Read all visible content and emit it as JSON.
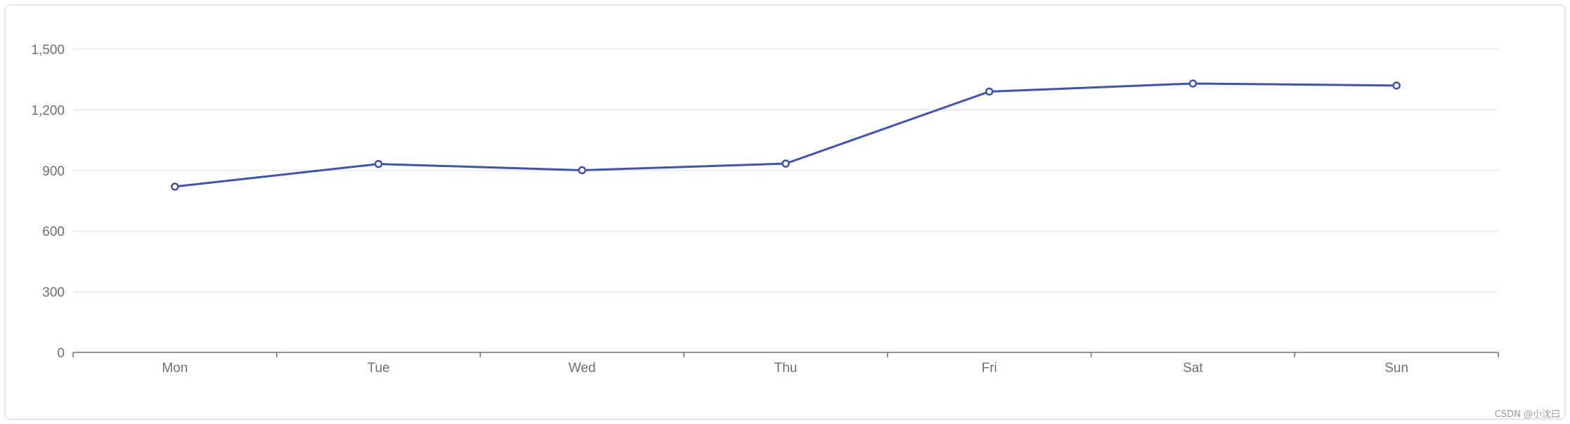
{
  "chart_data": {
    "type": "line",
    "categories": [
      "Mon",
      "Tue",
      "Wed",
      "Thu",
      "Fri",
      "Sat",
      "Sun"
    ],
    "series": [
      {
        "values": [
          820,
          932,
          901,
          934,
          1290,
          1330,
          1320
        ]
      }
    ],
    "ylim": [
      0,
      1500
    ],
    "yticks": [
      0,
      300,
      600,
      900,
      1200,
      1500
    ],
    "ytick_labels": [
      "0",
      "300",
      "600",
      "900",
      "1,200",
      "1,500"
    ],
    "grid": true,
    "legend": "none",
    "colors": {
      "line": "#3e52b4",
      "grid": "#e0e3ef",
      "axis": "#6e7079",
      "label": "#6e7079"
    }
  },
  "watermark": "CSDN @小沈曰"
}
